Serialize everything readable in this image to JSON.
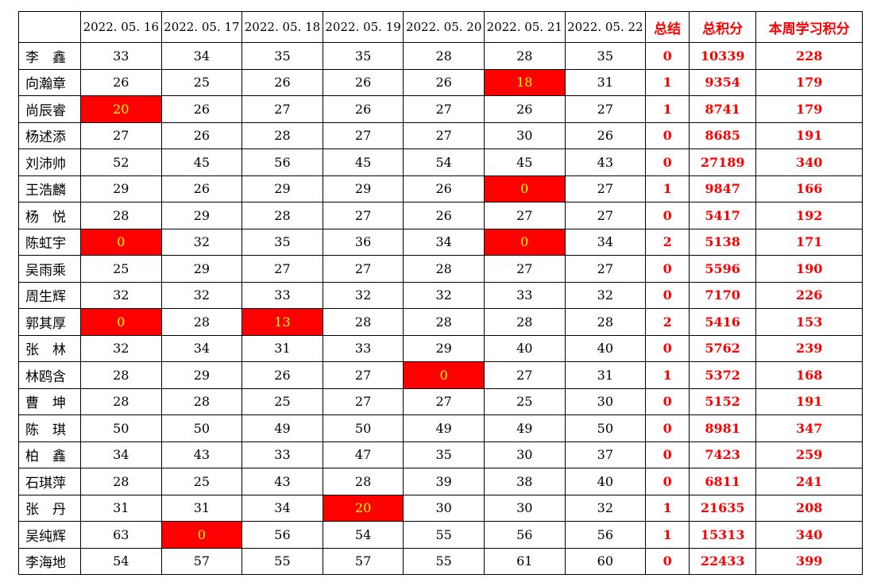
{
  "colors": {
    "accent_red": "#ff0000",
    "highlight_bg": "#ff0000",
    "highlight_text": "#ffff00",
    "grid": "#000000",
    "background": "#ffffff"
  },
  "chart_data": {
    "type": "table",
    "columns": {
      "row_label": "",
      "dates": [
        "2022. 05. 16",
        "2022. 05. 17",
        "2022. 05. 18",
        "2022. 05. 19",
        "2022. 05. 20",
        "2022. 05. 21",
        "2022. 05. 22"
      ],
      "summary": "总结",
      "total": "总积分",
      "week": "本周学习积分"
    },
    "rows": [
      {
        "name": "李　鑫",
        "days": [
          33,
          34,
          35,
          35,
          28,
          28,
          35
        ],
        "highlight_days": [],
        "summary": 0,
        "total": 10339,
        "week": 228
      },
      {
        "name": "向瀚章",
        "days": [
          26,
          25,
          26,
          26,
          26,
          18,
          31
        ],
        "highlight_days": [
          5
        ],
        "summary": 1,
        "total": 9354,
        "week": 179
      },
      {
        "name": "尚辰睿",
        "days": [
          20,
          26,
          27,
          26,
          27,
          26,
          27
        ],
        "highlight_days": [
          0
        ],
        "summary": 1,
        "total": 8741,
        "week": 179
      },
      {
        "name": "杨述添",
        "days": [
          27,
          26,
          28,
          27,
          27,
          30,
          26
        ],
        "highlight_days": [],
        "summary": 0,
        "total": 8685,
        "week": 191
      },
      {
        "name": "刘沛帅",
        "days": [
          52,
          45,
          56,
          45,
          54,
          45,
          43
        ],
        "highlight_days": [],
        "summary": 0,
        "total": 27189,
        "week": 340
      },
      {
        "name": "王浩麟",
        "days": [
          29,
          26,
          29,
          29,
          26,
          0,
          27
        ],
        "highlight_days": [
          5
        ],
        "summary": 1,
        "total": 9847,
        "week": 166
      },
      {
        "name": "杨　悦",
        "days": [
          28,
          29,
          28,
          27,
          26,
          27,
          27
        ],
        "highlight_days": [],
        "summary": 0,
        "total": 5417,
        "week": 192
      },
      {
        "name": "陈虹宇",
        "days": [
          0,
          32,
          35,
          36,
          34,
          0,
          34
        ],
        "highlight_days": [
          0,
          5
        ],
        "summary": 2,
        "total": 5138,
        "week": 171
      },
      {
        "name": "吴雨乘",
        "days": [
          25,
          29,
          27,
          27,
          28,
          27,
          27
        ],
        "highlight_days": [],
        "summary": 0,
        "total": 5596,
        "week": 190
      },
      {
        "name": "周生辉",
        "days": [
          32,
          32,
          33,
          32,
          32,
          33,
          32
        ],
        "highlight_days": [],
        "summary": 0,
        "total": 7170,
        "week": 226
      },
      {
        "name": "郭其厚",
        "days": [
          0,
          28,
          13,
          28,
          28,
          28,
          28
        ],
        "highlight_days": [
          0,
          2
        ],
        "summary": 2,
        "total": 5416,
        "week": 153
      },
      {
        "name": "张　林",
        "days": [
          32,
          34,
          31,
          33,
          29,
          40,
          40
        ],
        "highlight_days": [],
        "summary": 0,
        "total": 5762,
        "week": 239
      },
      {
        "name": "林鸥含",
        "days": [
          28,
          29,
          26,
          27,
          0,
          27,
          31
        ],
        "highlight_days": [
          4
        ],
        "summary": 1,
        "total": 5372,
        "week": 168
      },
      {
        "name": "曹　坤",
        "days": [
          28,
          28,
          25,
          27,
          27,
          25,
          30
        ],
        "highlight_days": [],
        "summary": 0,
        "total": 5152,
        "week": 191
      },
      {
        "name": "陈　琪",
        "days": [
          50,
          50,
          49,
          50,
          49,
          49,
          50
        ],
        "highlight_days": [],
        "summary": 0,
        "total": 8981,
        "week": 347
      },
      {
        "name": "柏　鑫",
        "days": [
          34,
          43,
          33,
          47,
          35,
          30,
          37
        ],
        "highlight_days": [],
        "summary": 0,
        "total": 7423,
        "week": 259
      },
      {
        "name": "石琪萍",
        "days": [
          28,
          25,
          43,
          28,
          39,
          38,
          40
        ],
        "highlight_days": [],
        "summary": 0,
        "total": 6811,
        "week": 241
      },
      {
        "name": "张　丹",
        "days": [
          31,
          31,
          34,
          20,
          30,
          30,
          32
        ],
        "highlight_days": [
          3
        ],
        "summary": 1,
        "total": 21635,
        "week": 208
      },
      {
        "name": "吴纯辉",
        "days": [
          63,
          0,
          56,
          54,
          55,
          56,
          56
        ],
        "highlight_days": [
          1
        ],
        "summary": 1,
        "total": 15313,
        "week": 340
      },
      {
        "name": "李海地",
        "days": [
          54,
          57,
          55,
          57,
          55,
          61,
          60
        ],
        "highlight_days": [],
        "summary": 0,
        "total": 22433,
        "week": 399
      }
    ]
  }
}
